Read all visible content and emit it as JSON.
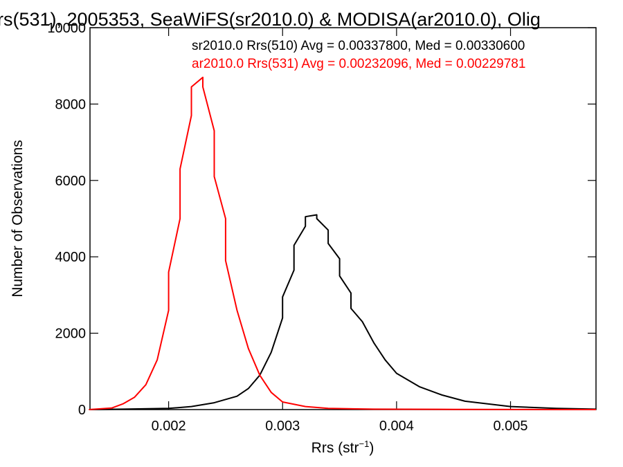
{
  "chart_data": {
    "type": "line",
    "title": "rs(531), 2005353, SeaWiFS(sr2010.0) & MODISA(ar2010.0), Olig",
    "xlabel": "Rrs (str",
    "xlabel_superscript": "−1",
    "xlabel_suffix": ")",
    "ylabel": "Number of Observations",
    "xlim": [
      0.00131,
      0.00575
    ],
    "ylim": [
      0,
      10000
    ],
    "x_tick_labels": [
      "0.002",
      "0.003",
      "0.004",
      "0.005"
    ],
    "x_ticks": [
      0.002,
      0.003,
      0.004,
      0.005
    ],
    "y_tick_labels": [
      "0",
      "2000",
      "4000",
      "6000",
      "8000",
      "10000"
    ],
    "y_ticks": [
      0,
      2000,
      4000,
      6000,
      8000,
      10000
    ],
    "grid": false,
    "legend_position": "top-right",
    "series": [
      {
        "name": "sr2010.0 Rrs(510) Avg = 0.00337800, Med = 0.00330600",
        "color": "#000000",
        "x": [
          0.0013,
          0.0016,
          0.002,
          0.0022,
          0.0024,
          0.0026,
          0.0027,
          0.0028,
          0.0029,
          0.003,
          0.003,
          0.0031,
          0.0031,
          0.0032,
          0.0032,
          0.0033,
          0.0033,
          0.0034,
          0.0034,
          0.0035,
          0.0035,
          0.0036,
          0.0036,
          0.0037,
          0.0038,
          0.0039,
          0.004,
          0.0042,
          0.0044,
          0.0046,
          0.005,
          0.0054,
          0.00575
        ],
        "y": [
          0,
          10,
          30,
          80,
          180,
          350,
          550,
          900,
          1500,
          2400,
          2950,
          3650,
          4300,
          4800,
          5050,
          5100,
          5000,
          4700,
          4350,
          3950,
          3500,
          3050,
          2650,
          2300,
          1750,
          1300,
          950,
          600,
          380,
          220,
          80,
          30,
          10
        ]
      },
      {
        "name": "ar2010.0 Rrs(531) Avg = 0.00232096, Med = 0.00229781",
        "color": "#ff0000",
        "x": [
          0.0013,
          0.0015,
          0.0016,
          0.0017,
          0.0018,
          0.0019,
          0.002,
          0.002,
          0.0021,
          0.0021,
          0.0022,
          0.0022,
          0.0023,
          0.0023,
          0.0024,
          0.0024,
          0.0025,
          0.0025,
          0.0026,
          0.0027,
          0.0028,
          0.0029,
          0.003,
          0.0032,
          0.0034,
          0.0038,
          0.0045,
          0.0055,
          0.00575
        ],
        "y": [
          0,
          40,
          150,
          320,
          650,
          1300,
          2600,
          3600,
          5000,
          6300,
          7700,
          8450,
          8700,
          8450,
          7300,
          6100,
          5000,
          3900,
          2600,
          1600,
          900,
          450,
          200,
          80,
          30,
          10,
          5,
          0,
          0
        ]
      }
    ]
  }
}
